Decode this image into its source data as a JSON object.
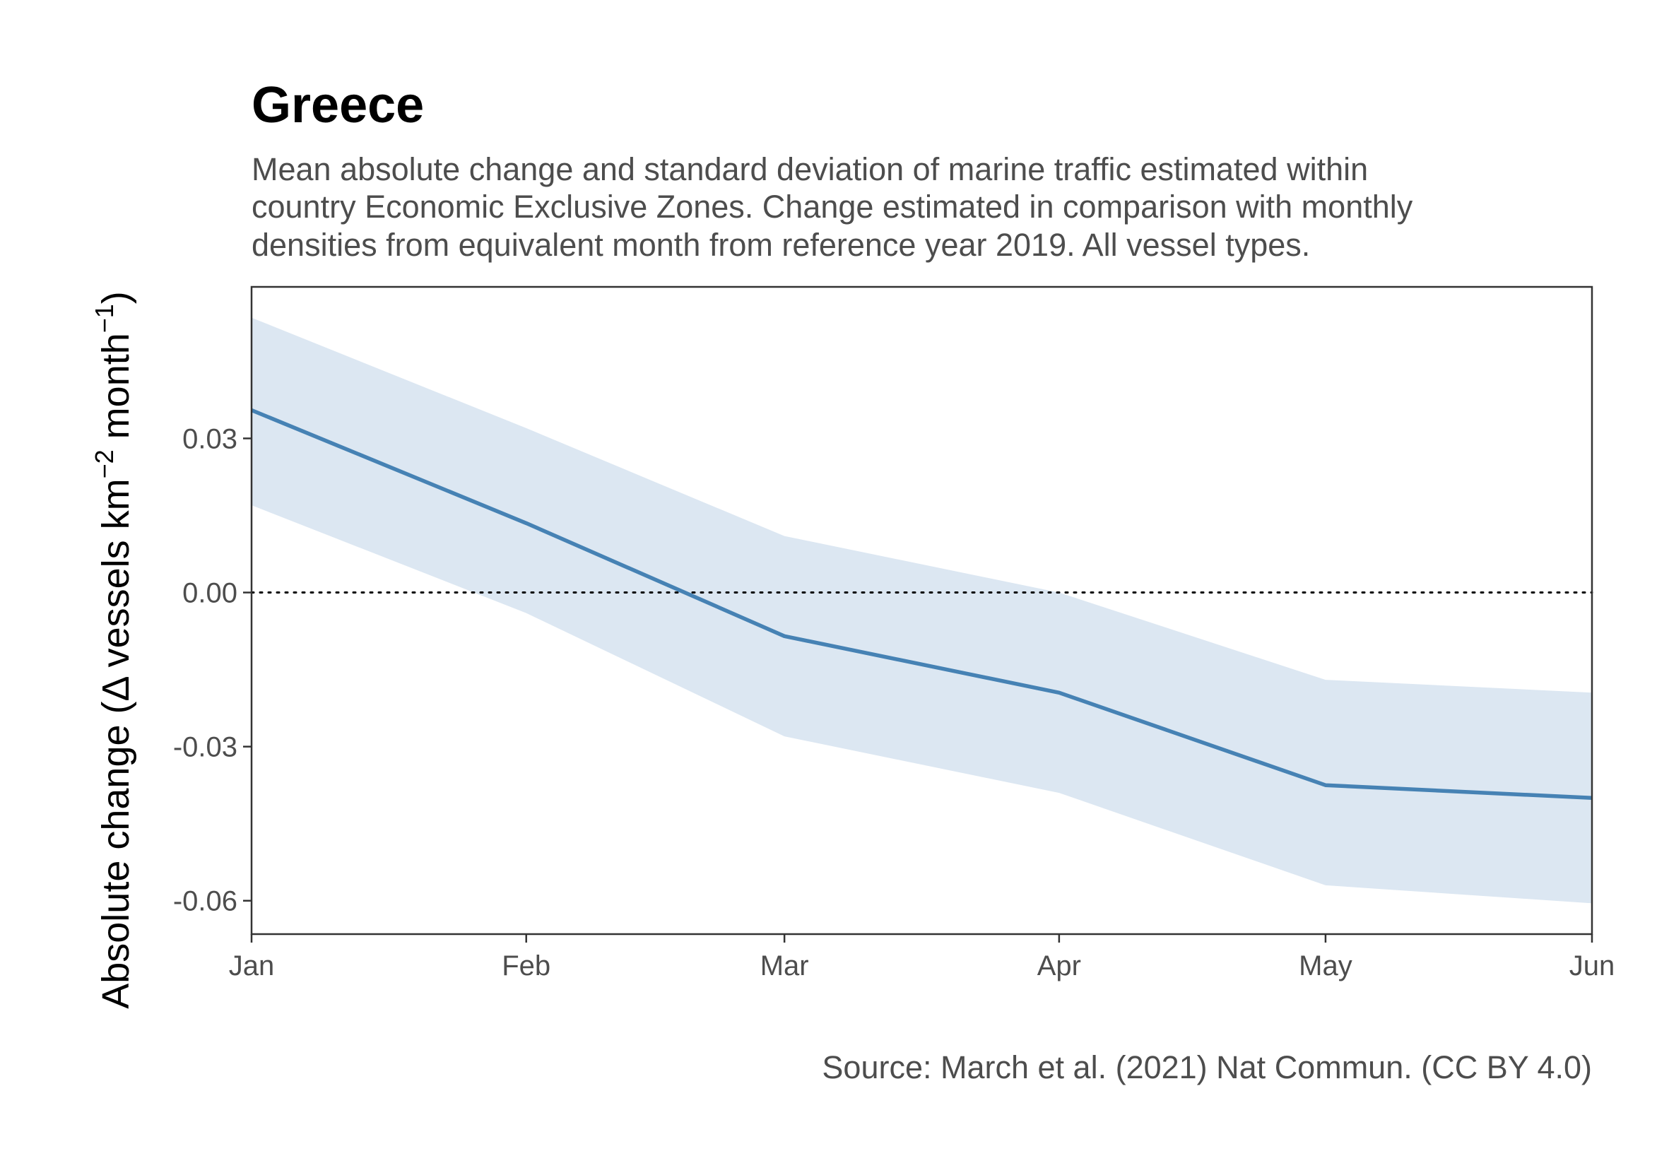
{
  "chart_data": {
    "type": "area",
    "title": "Greece",
    "subtitle_lines": [
      "Mean absolute change and standard deviation of marine traffic estimated within",
      "country Economic Exclusive Zones. Change estimated in comparison with monthly",
      "densities from equivalent month from reference year 2019. All vessel types."
    ],
    "ylabel": {
      "prefix": "Absolute change (",
      "body": "Δ vessels km",
      "exp1": "−2",
      "mid": " month",
      "exp2": "−1",
      "suffix": ")"
    },
    "xlabel": "",
    "caption": "Source: March et al. (2021) Nat Commun. (CC BY 4.0)",
    "categories": [
      "Jan",
      "Feb",
      "Mar",
      "Apr",
      "May",
      "Jun"
    ],
    "x_positions": [
      1,
      2,
      2.94,
      3.94,
      4.91,
      5.88
    ],
    "xlim": [
      1,
      5.88
    ],
    "series": [
      {
        "values": [
          0.0355,
          0.0135,
          -0.0085,
          -0.0195,
          -0.0375,
          -0.04
        ],
        "lower": [
          0.017,
          -0.004,
          -0.028,
          -0.039,
          -0.057,
          -0.0605
        ],
        "upper": [
          0.0535,
          0.032,
          0.011,
          0.0,
          -0.017,
          -0.0195
        ]
      }
    ],
    "yticks": [
      0.03,
      0.0,
      -0.03,
      -0.06
    ],
    "ytick_labels": [
      "0.03",
      "0.00",
      "-0.03",
      "-0.06"
    ],
    "ylim": [
      -0.0665,
      0.0595
    ],
    "reference_line": 0,
    "grid": false,
    "colors": {
      "line": "#4682b4",
      "ribbon": "#dce7f2",
      "axis": "#333333",
      "reference": "#000000"
    }
  }
}
